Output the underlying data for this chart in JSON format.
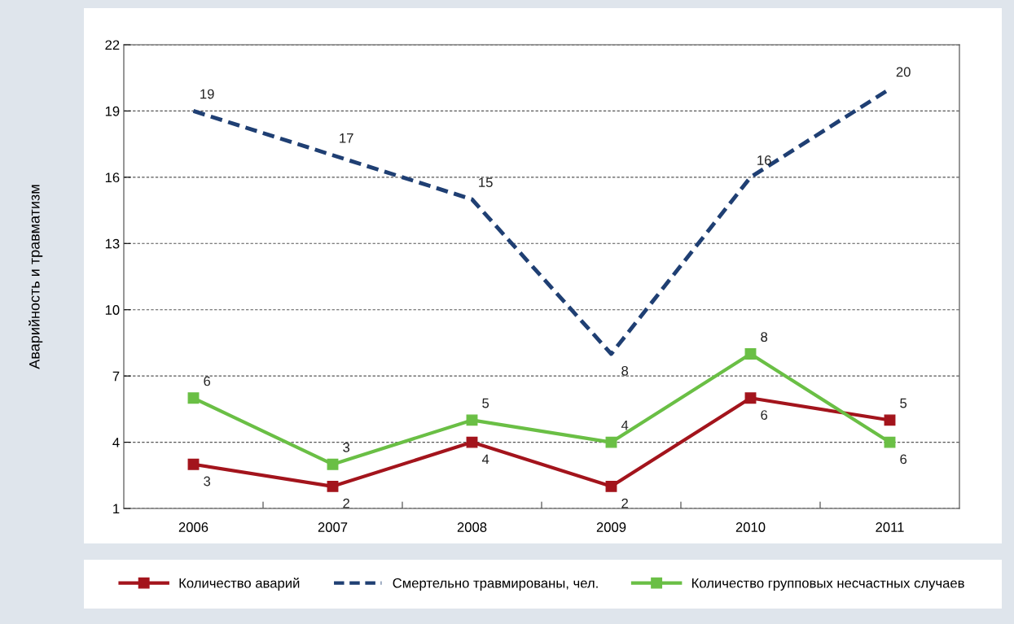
{
  "chart_data": {
    "type": "line",
    "ylabel": "Аварийность и травматизм",
    "categories": [
      "2006",
      "2007",
      "2008",
      "2009",
      "2010",
      "2011"
    ],
    "series": [
      {
        "name": "Количество аварий",
        "color": "#a3141c",
        "marker": "square",
        "line_style": "solid",
        "values": [
          3,
          2,
          4,
          2,
          6,
          5
        ],
        "value_labels": [
          "3",
          "2",
          "4",
          "2",
          "6",
          "5"
        ]
      },
      {
        "name": "Смертельно травмированы, чел.",
        "color": "#1f3f73",
        "marker": "none",
        "line_style": "dashed",
        "values": [
          19,
          17,
          15,
          8,
          16,
          20
        ],
        "value_labels": [
          "19",
          "17",
          "15",
          "8",
          "16",
          "20"
        ]
      },
      {
        "name": "Количество групповых несчастных случаев",
        "color": "#6abf45",
        "marker": "square",
        "line_style": "solid",
        "values": [
          6,
          3,
          5,
          4,
          8,
          4
        ],
        "value_labels": [
          "6",
          "3",
          "5",
          "4",
          "8",
          null
        ]
      }
    ],
    "annotations": [
      {
        "text": "6",
        "x": "2011",
        "y": 4
      }
    ],
    "ylim": [
      1,
      22
    ],
    "yticks": [
      1,
      4,
      7,
      10,
      13,
      16,
      19,
      22
    ],
    "grid": "y",
    "legend": "bottom"
  }
}
